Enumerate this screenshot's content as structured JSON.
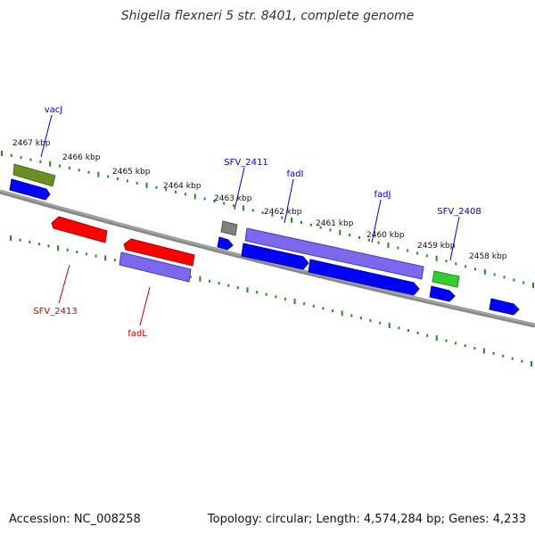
{
  "title": "Shigella flexneri 5 str. 8401, complete genome",
  "footer": {
    "accession": "Accession: NC_008258",
    "info": "Topology: circular; Length: 4,574,284 bp; Genes: 4,233"
  },
  "ticks": [
    {
      "label": "2467 kbp"
    },
    {
      "label": "2466 kbp"
    },
    {
      "label": "2465 kbp"
    },
    {
      "label": "2464 kbp"
    },
    {
      "label": "2463 kbp"
    },
    {
      "label": "2462 kbp"
    },
    {
      "label": "2461 kbp"
    },
    {
      "label": "2460 kbp"
    },
    {
      "label": "2459 kbp"
    },
    {
      "label": "2458 kbp"
    }
  ],
  "labels": [
    {
      "text": "vacJ",
      "color": "#0000c8"
    },
    {
      "text": "SFV_2411",
      "color": "#0000c8"
    },
    {
      "text": "fadI",
      "color": "#0000c8"
    },
    {
      "text": "fadJ",
      "color": "#0000c8"
    },
    {
      "text": "SFV_2408",
      "color": "#0000c8"
    },
    {
      "text": "SFV_2413",
      "color": "#c80000"
    },
    {
      "text": "fadL",
      "color": "#c80000"
    }
  ],
  "colors": {
    "cds_forward": "#0000ff",
    "cds_reverse": "#ff0000",
    "gene": "#7b68ee",
    "olive": "#6b8e23",
    "green": "#33cc33",
    "gray": "#808080",
    "tick": "#228b22",
    "backbone": "#888888"
  }
}
